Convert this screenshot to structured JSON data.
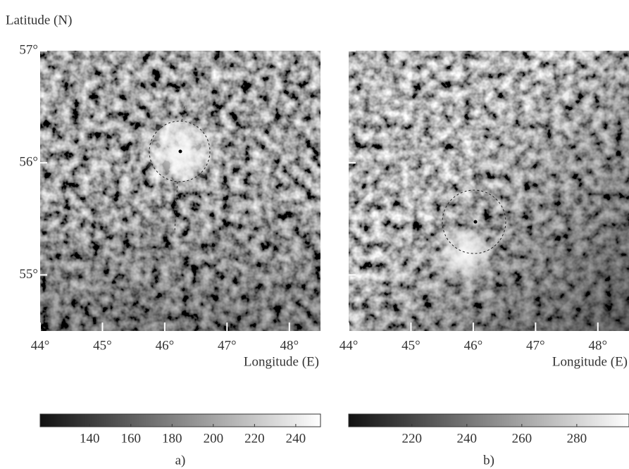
{
  "chart_data": [
    {
      "type": "heatmap",
      "caption": "a)",
      "ylabel": "Latitude (N)",
      "xlabel": "Longitude (E)",
      "xlim": [
        44,
        48.5
      ],
      "xticks": [
        {
          "value": 44,
          "label": "44°"
        },
        {
          "value": 45,
          "label": "45°"
        },
        {
          "value": 46,
          "label": "46°"
        },
        {
          "value": 47,
          "label": "47°"
        },
        {
          "value": 48,
          "label": "48°"
        }
      ],
      "ylim": [
        54.5,
        57
      ],
      "yticks": [
        {
          "value": 55,
          "label": "55°"
        },
        {
          "value": 56,
          "label": "56°"
        },
        {
          "value": 57,
          "label": "57°"
        }
      ],
      "clim": [
        116,
        252
      ],
      "cticks": [
        140,
        160,
        180,
        200,
        220,
        240
      ]
    },
    {
      "type": "heatmap",
      "caption": "b)",
      "xlabel": "Longitude (E)",
      "xlim": [
        44,
        48.5
      ],
      "xticks": [
        {
          "value": 44,
          "label": "44°"
        },
        {
          "value": 45,
          "label": "45°"
        },
        {
          "value": 46,
          "label": "46°"
        },
        {
          "value": 47,
          "label": "47°"
        },
        {
          "value": 48,
          "label": "48°"
        }
      ],
      "clim": [
        197,
        299
      ],
      "cticks": [
        220,
        240,
        260,
        280
      ]
    }
  ]
}
